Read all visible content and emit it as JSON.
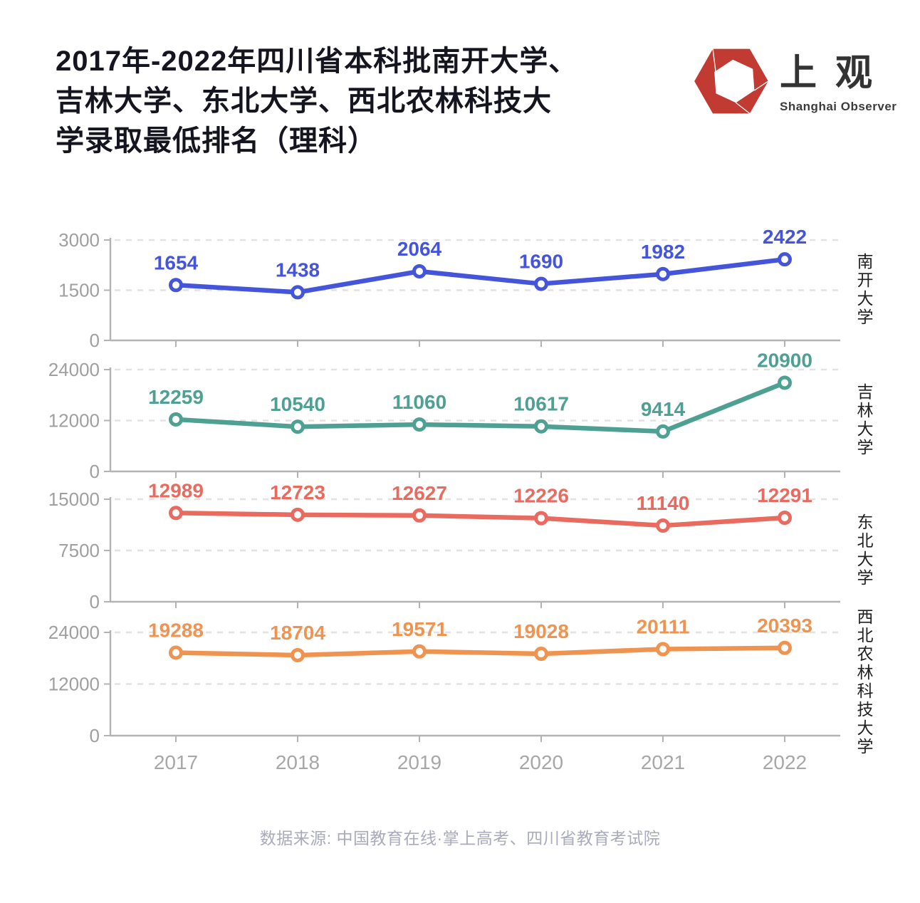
{
  "header": {
    "title": "2017年-2022年四川省本科批南开大学、\n吉林大学、东北大学、西北农林科技大\n学录取最低排名（理科）",
    "logo": {
      "name": "上观",
      "subtitle": "Shanghai Observer",
      "brand_color": "#c23b33"
    }
  },
  "footer": {
    "source": "数据来源: 中国教育在线·掌上高考、四川省教育考试院"
  },
  "chart_data": {
    "type": "line",
    "facet": "rows",
    "x": [
      "2017",
      "2018",
      "2019",
      "2020",
      "2021",
      "2022"
    ],
    "series": [
      {
        "name": "南开大学",
        "color": "#4454db",
        "values": [
          1654,
          1438,
          2064,
          1690,
          1982,
          2422
        ],
        "ylim": [
          0,
          3000
        ],
        "yticks": [
          0,
          1500,
          3000
        ]
      },
      {
        "name": "吉林大学",
        "color": "#4ea093",
        "values": [
          12259,
          10540,
          11060,
          10617,
          9414,
          20900
        ],
        "ylim": [
          0,
          24000
        ],
        "yticks": [
          0,
          12000,
          24000
        ]
      },
      {
        "name": "东北大学",
        "color": "#e96a5e",
        "values": [
          12989,
          12723,
          12627,
          12226,
          11140,
          12291
        ],
        "ylim": [
          0,
          15000
        ],
        "yticks": [
          0,
          7500,
          15000
        ]
      },
      {
        "name": "西北农林科技大学",
        "color": "#ef9350",
        "values": [
          19288,
          18704,
          19571,
          19028,
          20111,
          20393
        ],
        "ylim": [
          0,
          24000
        ],
        "yticks": [
          0,
          12000,
          24000
        ]
      }
    ],
    "layout": {
      "grid": "dashed-horizontal",
      "data_labels": "above-points",
      "series_label_position": "right-vertical",
      "axis_color": "#b3b3b3",
      "tick_label_color": "#9f9f9f",
      "grid_color": "#e2e2e2"
    }
  }
}
